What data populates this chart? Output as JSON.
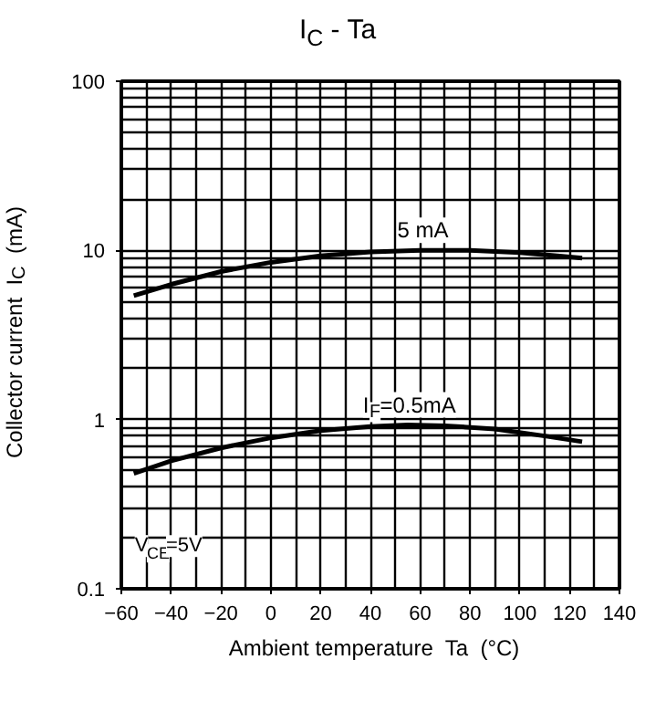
{
  "chart_data": {
    "type": "line",
    "title": "I$_{C}$ - Ta",
    "xlabel": "Ambient temperature  Ta   (°C)",
    "ylabel": "Collector current  I$_{C}$  (mA)",
    "log": "y",
    "xlim": [
      -60,
      140
    ],
    "xticks": [
      -60,
      -40,
      -20,
      0,
      20,
      40,
      60,
      80,
      100,
      120,
      140
    ],
    "ylim": [
      0.1,
      100
    ],
    "yticks": [
      0.1,
      1,
      10,
      100
    ],
    "grid": true,
    "legend": false,
    "line_style": "solid",
    "marker": "none",
    "annotations": [
      "V$_{CE}$=5V"
    ],
    "series": [
      {
        "name": "I$_{F}$=0.5mA",
        "color": "#000000",
        "x": [
          -55,
          -40,
          -20,
          0,
          20,
          40,
          55,
          70,
          90,
          110,
          125
        ],
        "values": [
          0.48,
          0.57,
          0.68,
          0.78,
          0.86,
          0.91,
          0.93,
          0.92,
          0.88,
          0.8,
          0.74
        ]
      },
      {
        "name": "5 mA",
        "color": "#000000",
        "x": [
          -55,
          -40,
          -20,
          0,
          20,
          40,
          60,
          80,
          100,
          115,
          125
        ],
        "values": [
          5.4,
          6.3,
          7.5,
          8.5,
          9.3,
          9.8,
          10.0,
          10.0,
          9.7,
          9.3,
          9.0
        ]
      }
    ]
  }
}
